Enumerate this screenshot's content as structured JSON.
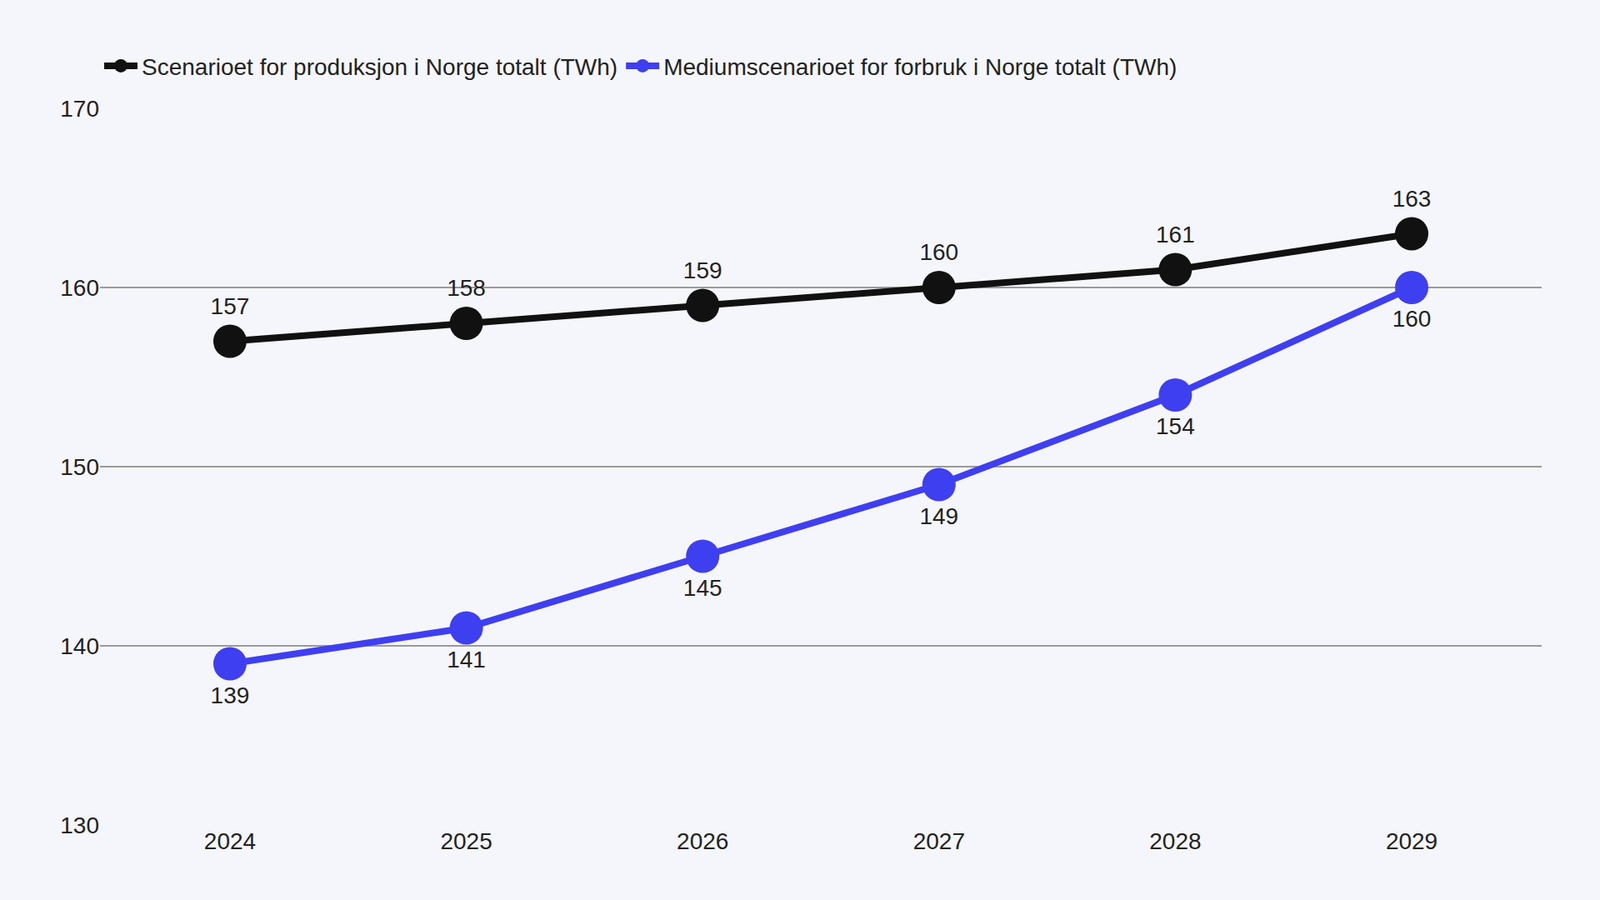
{
  "chart_data": {
    "type": "line",
    "categories": [
      "2024",
      "2025",
      "2026",
      "2027",
      "2028",
      "2029"
    ],
    "series": [
      {
        "name": "Scenarioet for produksjon i Norge totalt (TWh)",
        "color": "#111111",
        "marker": "circle",
        "values": [
          157,
          158,
          159,
          160,
          161,
          163
        ]
      },
      {
        "name": "Mediumscenarioet for forbruk i Norge totalt (TWh)",
        "color": "#3f3ff2",
        "marker": "circle",
        "values": [
          139,
          141,
          145,
          149,
          154,
          160
        ]
      }
    ],
    "ylim": [
      130,
      170
    ],
    "yticks": [
      130,
      140,
      150,
      160,
      170
    ],
    "grid": true,
    "legend": "top-left",
    "data_labels": true
  }
}
